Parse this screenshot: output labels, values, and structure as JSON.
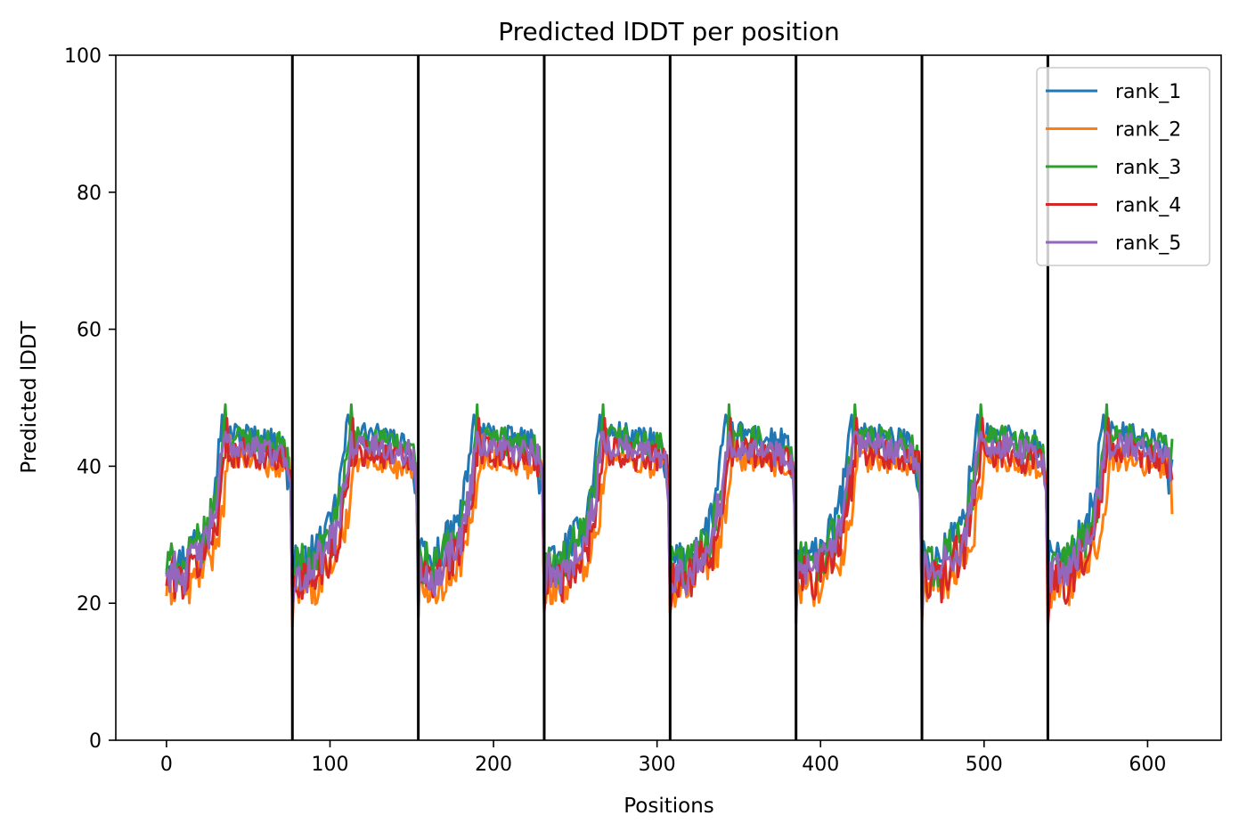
{
  "chart_data": {
    "type": "line",
    "title": "Predicted lDDT per position",
    "xlabel": "Positions",
    "ylabel": "Predicted lDDT",
    "xlim": [
      -31,
      645
    ],
    "ylim": [
      0,
      100
    ],
    "xticks": [
      "0",
      "100",
      "200",
      "300",
      "400",
      "500",
      "600"
    ],
    "yticks": [
      "0",
      "20",
      "40",
      "60",
      "80",
      "100"
    ],
    "grid": false,
    "legend_position": "top-right",
    "segment_length": 77,
    "segment_boundaries": [
      77,
      154,
      231,
      308,
      385,
      462,
      539
    ],
    "total_positions": 616,
    "x": "positions 0..615",
    "base_profile": [
      [
        0,
        24
      ],
      [
        4,
        25
      ],
      [
        10,
        24
      ],
      [
        18,
        27
      ],
      [
        25,
        29
      ],
      [
        30,
        34
      ],
      [
        33,
        39
      ],
      [
        35,
        43
      ],
      [
        40,
        43
      ],
      [
        50,
        43
      ],
      [
        60,
        42
      ],
      [
        70,
        42
      ],
      [
        74,
        41
      ],
      [
        76,
        36
      ]
    ],
    "series": [
      {
        "name": "rank_1",
        "color": "#1f77b4",
        "offset": 1.8,
        "shift": -2,
        "noise": 2.0,
        "peak": 47.5,
        "end": 41
      },
      {
        "name": "rank_2",
        "color": "#ff7f0e",
        "offset": -2.0,
        "shift": 3,
        "noise": 2.0,
        "peak": 44.5,
        "end": 33
      },
      {
        "name": "rank_3",
        "color": "#2ca02c",
        "offset": 1.0,
        "shift": 0,
        "noise": 2.4,
        "peak": 49.0,
        "end": 44
      },
      {
        "name": "rank_4",
        "color": "#d62728",
        "offset": -1.0,
        "shift": 1,
        "noise": 2.4,
        "peak": 47.0,
        "end": 38
      },
      {
        "name": "rank_5",
        "color": "#9467bd",
        "offset": 0.0,
        "shift": 0,
        "noise": 2.2,
        "peak": 45.0,
        "end": 38
      }
    ]
  }
}
